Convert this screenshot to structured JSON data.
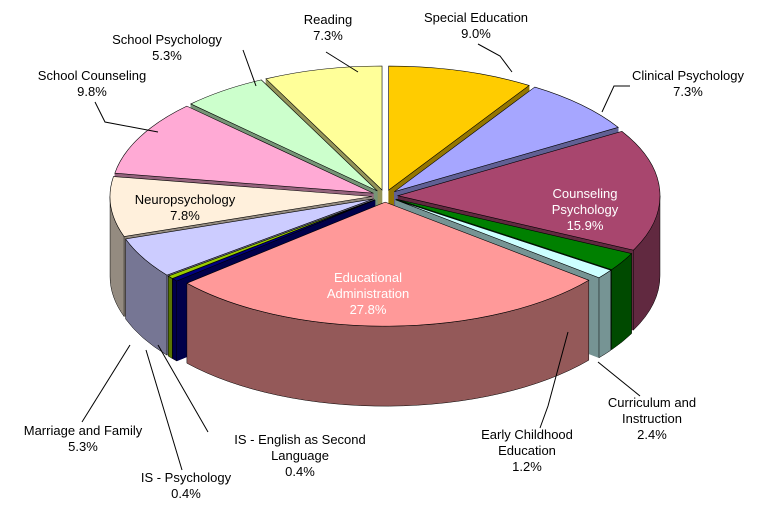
{
  "chart_data": {
    "type": "pie3d",
    "categories": [
      "Special Education",
      "Clinical Psychology",
      "Counseling Psychology",
      "Curriculum and Instruction",
      "Early Childhood Education",
      "Educational Administration",
      "IS - English as Second Language",
      "IS - Psychology",
      "Marriage and Family",
      "Neuropsychology",
      "School Counseling",
      "School Psychology",
      "Reading"
    ],
    "values": [
      9.0,
      7.3,
      15.9,
      2.4,
      1.2,
      27.8,
      0.4,
      0.4,
      5.3,
      7.8,
      9.8,
      5.3,
      7.3
    ],
    "value_labels": [
      "9.0%",
      "7.3%",
      "15.9%",
      "2.4%",
      "1.2%",
      "27.8%",
      "0.4%",
      "0.4%",
      "5.3%",
      "7.8%",
      "9.8%",
      "5.3%",
      "7.3%"
    ],
    "colors": [
      "#FFCC00",
      "#A6A6FF",
      "#A8466E",
      "#008000",
      "#CCFFFF",
      "#FF9999",
      "#000080",
      "#99CC00",
      "#CCCCFF",
      "#FFF0DC",
      "#FFAAD5",
      "#CCFFCC",
      "#FFFF99"
    ]
  }
}
